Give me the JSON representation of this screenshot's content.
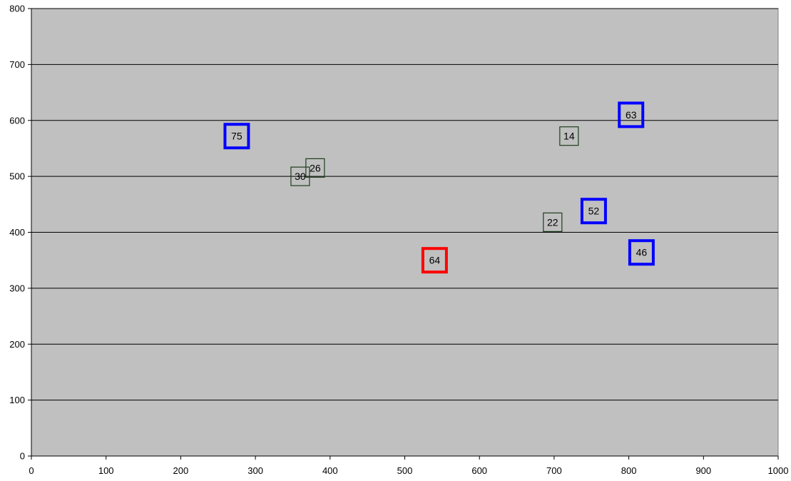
{
  "chart_data": {
    "type": "scatter",
    "title": "",
    "xlabel": "",
    "ylabel": "",
    "xlim": [
      0,
      1000
    ],
    "ylim": [
      0,
      800
    ],
    "x_ticks": [
      "0",
      "100",
      "200",
      "300",
      "400",
      "500",
      "600",
      "700",
      "800",
      "900",
      "1000"
    ],
    "y_ticks": [
      "0",
      "100",
      "200",
      "300",
      "400",
      "500",
      "600",
      "700",
      "800"
    ],
    "grid": "horizontal",
    "plot_background": "#c0c0c0",
    "series": [
      {
        "color": "#1f3d1f",
        "marker": "square-thin",
        "points": [
          {
            "x": 360,
            "y": 500,
            "label": "30"
          },
          {
            "x": 380,
            "y": 515,
            "label": "26"
          },
          {
            "x": 720,
            "y": 572,
            "label": "14"
          },
          {
            "x": 698,
            "y": 418,
            "label": "22"
          }
        ]
      },
      {
        "color": "#0000ff",
        "marker": "square-thick",
        "points": [
          {
            "x": 275,
            "y": 572,
            "label": "75"
          },
          {
            "x": 803,
            "y": 610,
            "label": "63"
          },
          {
            "x": 753,
            "y": 438,
            "label": "52"
          },
          {
            "x": 817,
            "y": 364,
            "label": "46"
          }
        ]
      },
      {
        "color": "#ff0000",
        "marker": "square-thick",
        "points": [
          {
            "x": 540,
            "y": 350,
            "label": "64"
          }
        ]
      }
    ]
  }
}
